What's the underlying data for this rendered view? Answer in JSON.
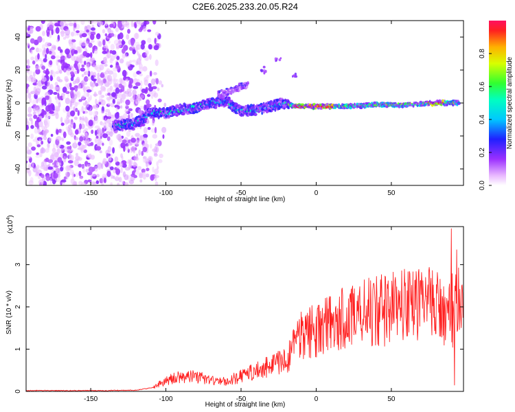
{
  "title": "C2E6.2025.233.20.05.R24",
  "colors": {
    "snr_line": "#ff2020",
    "axis": "#000000",
    "background": "#ffffff"
  },
  "chart_data": [
    {
      "type": "heatmap",
      "name": "spectrogram",
      "xlabel": "Height of straight line (km)",
      "ylabel": "Frequency (Hz)",
      "xlim": [
        -193,
        98
      ],
      "ylim": [
        -50,
        50
      ],
      "xticks": [
        -150,
        -100,
        -50,
        0,
        50
      ],
      "xtick_labels": [
        "-150",
        "-100",
        "-50",
        "0",
        "50"
      ],
      "yticks": [
        -40,
        -20,
        0,
        20,
        40
      ],
      "ytick_labels": [
        "-40",
        "-20",
        "0",
        "20",
        "40"
      ],
      "colorbar": {
        "label": "Normalized spectral amplitude",
        "range": [
          0,
          1
        ],
        "ticks": [
          0.0,
          0.2,
          0.4,
          0.6,
          0.8
        ],
        "tick_labels": [
          "0.0",
          "0.2",
          "0.4",
          "0.6",
          "0.8"
        ],
        "colormap": "rainbow"
      },
      "features": {
        "noise_region_x": [
          -193,
          -115
        ],
        "signal_ridge": [
          [
            -135,
            -14
          ],
          [
            -120,
            -12
          ],
          [
            -110,
            -6
          ],
          [
            -100,
            -6
          ],
          [
            -90,
            -4
          ],
          [
            -80,
            -3
          ],
          [
            -70,
            0
          ],
          [
            -60,
            1
          ],
          [
            -50,
            -5
          ],
          [
            -40,
            -4
          ],
          [
            -30,
            -2
          ],
          [
            -20,
            0
          ],
          [
            -15,
            -2
          ],
          [
            0,
            -2
          ],
          [
            20,
            -2
          ],
          [
            40,
            -1
          ],
          [
            60,
            -1
          ],
          [
            80,
            0
          ],
          [
            95,
            0
          ]
        ],
        "secondary_branch": [
          [
            -65,
            5
          ],
          [
            -55,
            8
          ],
          [
            -50,
            10
          ],
          [
            -45,
            11
          ]
        ],
        "isolated_blobs": [
          [
            -35,
            20
          ],
          [
            -25,
            27
          ],
          [
            -15,
            17
          ]
        ],
        "peak_amplitude_x": [
          -15,
          90
        ]
      }
    },
    {
      "type": "line",
      "name": "snr",
      "xlabel": "Height of straight line (km)",
      "ylabel": "SNR (10 * v/v)",
      "y_multiplier_label": "(x10",
      "y_multiplier_exponent": "4",
      "y_multiplier_suffix": ")",
      "xlim": [
        -193,
        98
      ],
      "ylim": [
        0,
        3.9
      ],
      "xticks": [
        -150,
        -100,
        -50,
        0,
        50
      ],
      "xtick_labels": [
        "-150",
        "-100",
        "-50",
        "0",
        "50"
      ],
      "yticks": [
        0,
        1,
        2,
        3
      ],
      "ytick_labels": [
        "0",
        "1",
        "2",
        "3"
      ],
      "trend_x": [
        -193,
        -140,
        -120,
        -110,
        -100,
        -90,
        -80,
        -70,
        -60,
        -50,
        -40,
        -30,
        -20,
        -15,
        -10,
        0,
        10,
        20,
        30,
        40,
        50,
        60,
        70,
        80,
        85,
        88,
        90,
        93,
        96,
        98
      ],
      "trend_y": [
        0.02,
        0.02,
        0.03,
        0.08,
        0.25,
        0.35,
        0.35,
        0.28,
        0.25,
        0.35,
        0.5,
        0.6,
        0.75,
        1.05,
        1.3,
        1.45,
        1.6,
        1.75,
        1.85,
        1.9,
        1.95,
        2.0,
        2.0,
        2.05,
        2.0,
        1.7,
        1.9,
        2.0,
        2.05,
        2.0
      ],
      "spike_x": [
        90,
        92,
        93.5
      ],
      "spike_y": [
        3.85,
        0.15,
        3.35
      ]
    }
  ]
}
